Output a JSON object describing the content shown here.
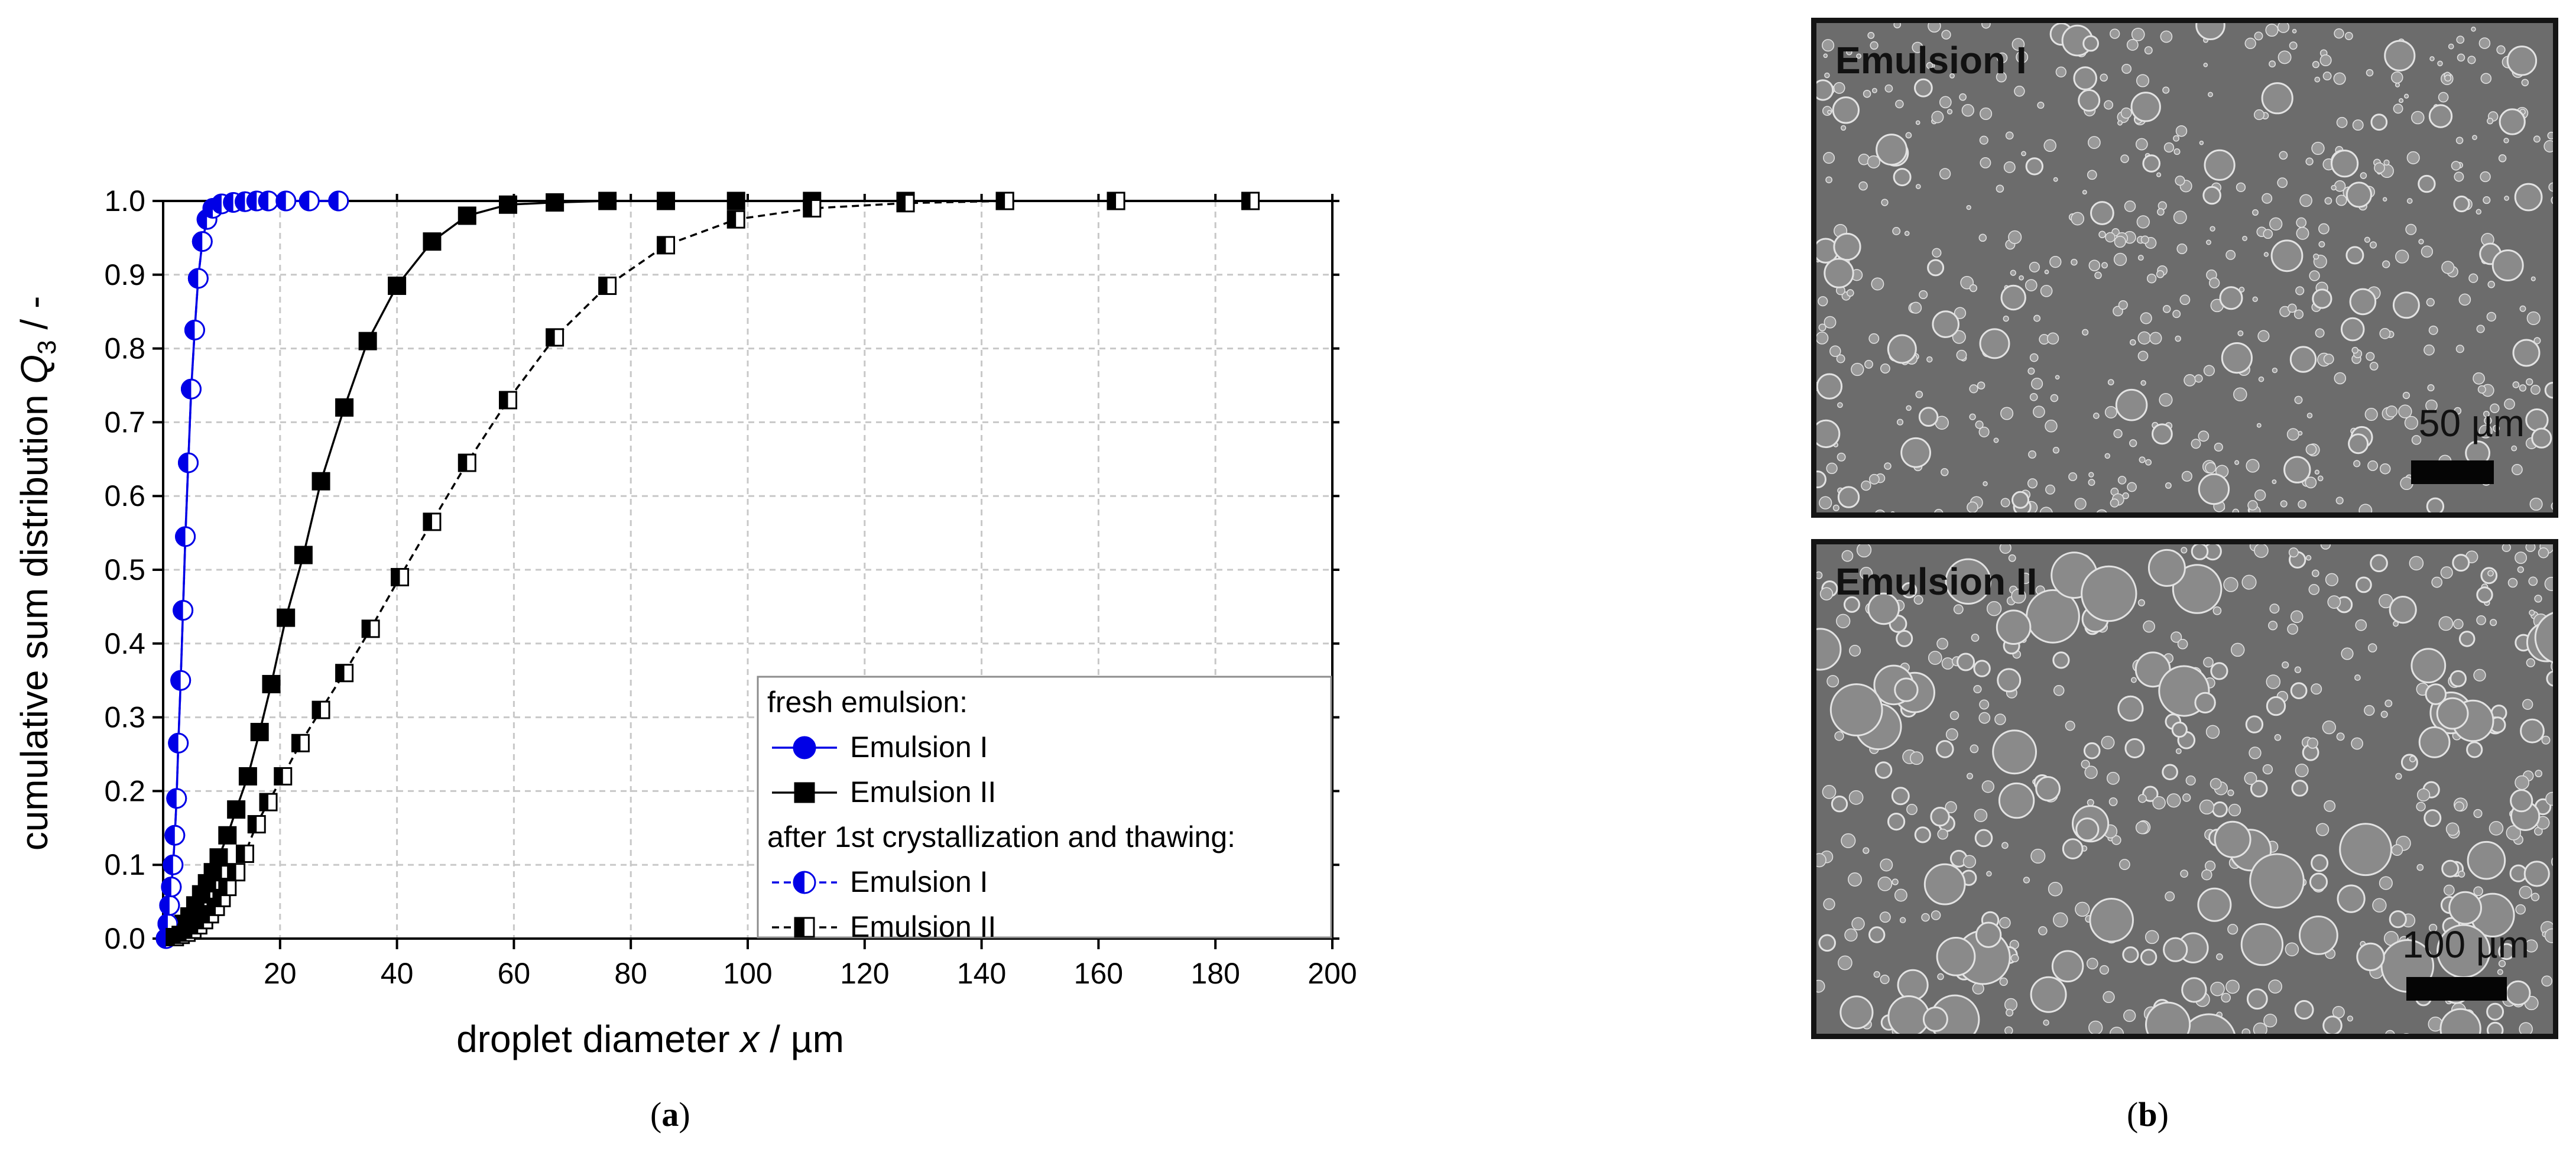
{
  "panel_a": {
    "label": "a"
  },
  "panel_b": {
    "label": "b"
  },
  "chart_data": {
    "type": "line",
    "title": "",
    "xlabel": {
      "pre": "droplet diameter ",
      "var": "x",
      "post": "  /  µm"
    },
    "ylabel": {
      "pre": "cumulative sum distribution ",
      "var": "Q",
      "sub": "3",
      "post": "  /  -"
    },
    "xlim": [
      0,
      200
    ],
    "ylim": [
      0,
      1.0
    ],
    "xticks": [
      20,
      40,
      60,
      80,
      100,
      120,
      140,
      160,
      180,
      200
    ],
    "yticks": [
      0.0,
      0.1,
      0.2,
      0.3,
      0.4,
      0.5,
      0.6,
      0.7,
      0.8,
      0.9,
      1.0
    ],
    "grid": true,
    "legend": {
      "position": "bottom-right",
      "heading_fresh": "fresh emulsion:",
      "heading_after": "after 1st crystallization and thawing:"
    },
    "series": [
      {
        "name": "Emulsion I",
        "group": "fresh",
        "color": "#0000e6",
        "marker": "circle",
        "fill": "full",
        "dash": false,
        "x": [
          0.5,
          0.8,
          1.1,
          1.4,
          1.7,
          2.0,
          2.3,
          2.6,
          3.0,
          3.4,
          3.8,
          4.3,
          4.8,
          5.4,
          6.0,
          6.7,
          7.5,
          8.5,
          10,
          12,
          14,
          16,
          18,
          21,
          25,
          30
        ],
        "y": [
          0.0,
          0.02,
          0.045,
          0.07,
          0.1,
          0.14,
          0.19,
          0.265,
          0.35,
          0.445,
          0.545,
          0.645,
          0.745,
          0.825,
          0.895,
          0.945,
          0.975,
          0.99,
          0.996,
          0.998,
          0.999,
          1.0,
          1.0,
          1.0,
          1.0,
          1.0
        ]
      },
      {
        "name": "Emulsion II",
        "group": "fresh",
        "color": "#000000",
        "marker": "square",
        "fill": "full",
        "dash": false,
        "x": [
          1.5,
          2.5,
          3.5,
          4.5,
          5.5,
          6.5,
          7.5,
          8.5,
          9.5,
          11,
          12.5,
          14.5,
          16.5,
          18.5,
          21,
          24,
          27,
          31,
          35,
          40,
          46,
          52,
          59,
          67,
          76,
          86,
          98,
          111,
          127,
          144,
          163,
          186
        ],
        "y": [
          0.005,
          0.01,
          0.02,
          0.03,
          0.045,
          0.06,
          0.075,
          0.09,
          0.11,
          0.14,
          0.175,
          0.22,
          0.28,
          0.345,
          0.435,
          0.52,
          0.62,
          0.72,
          0.81,
          0.885,
          0.945,
          0.98,
          0.995,
          0.998,
          1.0,
          1.0,
          1.0,
          1.0,
          1.0,
          1.0,
          1.0,
          1.0
        ]
      },
      {
        "name": "Emulsion I",
        "group": "after",
        "color": "#0000e6",
        "marker": "circle",
        "fill": "left-half",
        "dash": true,
        "x": [
          0.5,
          0.8,
          1.1,
          1.4,
          1.7,
          2.0,
          2.3,
          2.6,
          3.0,
          3.4,
          3.8,
          4.3,
          4.8,
          5.4,
          6.0,
          6.7,
          7.5,
          8.5,
          10,
          12,
          14,
          16,
          18,
          21,
          25,
          30
        ],
        "y": [
          0.0,
          0.02,
          0.045,
          0.07,
          0.1,
          0.14,
          0.19,
          0.265,
          0.35,
          0.445,
          0.545,
          0.645,
          0.745,
          0.825,
          0.895,
          0.945,
          0.975,
          0.99,
          0.996,
          0.998,
          0.999,
          1.0,
          1.0,
          1.0,
          1.0,
          1.0
        ]
      },
      {
        "name": "Emulsion II",
        "group": "after",
        "color": "#000000",
        "marker": "square",
        "fill": "left-half",
        "dash": true,
        "x": [
          2,
          3,
          4,
          5,
          6,
          7,
          8,
          9,
          10,
          11,
          12.5,
          14,
          16,
          18,
          20.5,
          23.5,
          27,
          31,
          35.5,
          40.5,
          46,
          52,
          59,
          67,
          76,
          86,
          98,
          111,
          127,
          144,
          163,
          186
        ],
        "y": [
          0.002,
          0.005,
          0.008,
          0.012,
          0.018,
          0.025,
          0.033,
          0.043,
          0.055,
          0.07,
          0.09,
          0.115,
          0.155,
          0.185,
          0.22,
          0.265,
          0.31,
          0.36,
          0.42,
          0.49,
          0.565,
          0.645,
          0.73,
          0.815,
          0.885,
          0.94,
          0.975,
          0.99,
          0.997,
          1.0,
          1.0,
          1.0
        ]
      }
    ]
  },
  "micrographs": [
    {
      "title": "Emulsion I",
      "scale": "50 µm"
    },
    {
      "title": "Emulsion II",
      "scale": "100 µm"
    }
  ]
}
